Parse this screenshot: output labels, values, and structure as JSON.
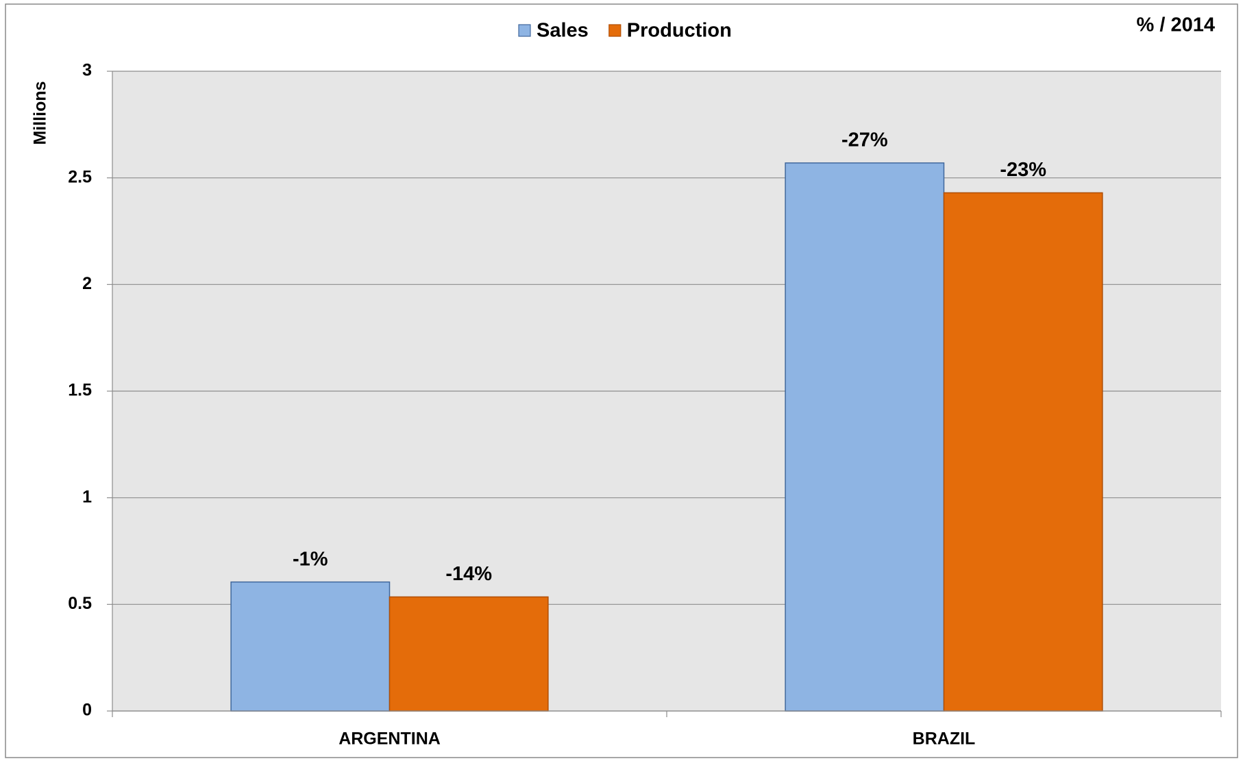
{
  "chart_data": {
    "type": "bar",
    "corner_label": "% / 2014",
    "y_label": "Millions",
    "categories": [
      "ARGENTINA",
      "BRAZIL"
    ],
    "series": [
      {
        "name": "Sales",
        "color": "#8eb4e3",
        "stroke": "#41689c",
        "values": [
          0.605,
          2.57
        ],
        "change_labels": [
          "-1%",
          "-27%"
        ]
      },
      {
        "name": "Production",
        "color": "#e46c0a",
        "stroke": "#b04e05",
        "values": [
          0.535,
          2.43
        ],
        "change_labels": [
          "-14%",
          "-23%"
        ]
      }
    ],
    "ylim": [
      0,
      3
    ],
    "yticks": [
      0,
      0.5,
      1,
      1.5,
      2,
      2.5,
      3
    ],
    "grid": true,
    "legend": "top"
  }
}
